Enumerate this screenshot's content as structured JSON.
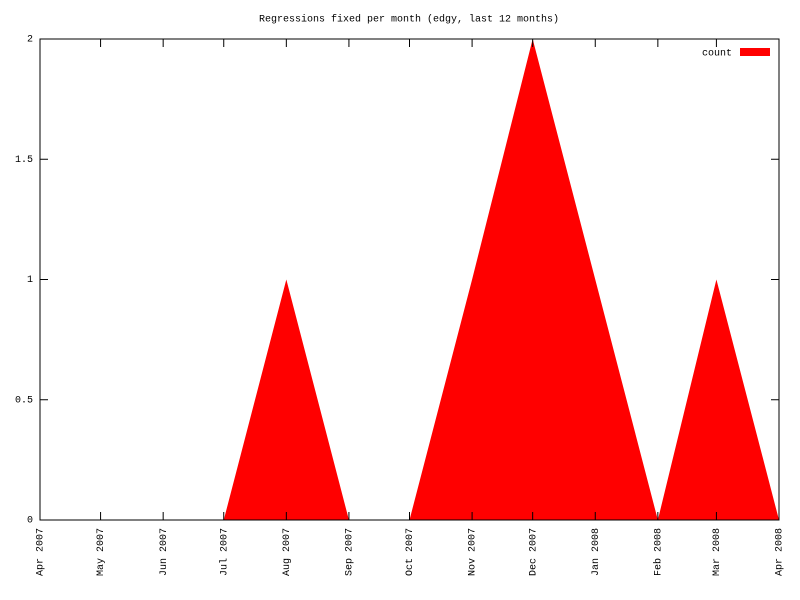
{
  "chart_data": {
    "type": "area",
    "title": "Regressions fixed per month (edgy, last 12 months)",
    "x": [
      "Apr 2007",
      "May 2007",
      "Jun 2007",
      "Jul 2007",
      "Aug 2007",
      "Sep 2007",
      "Oct 2007",
      "Nov 2007",
      "Dec 2007",
      "Jan 2008",
      "Feb 2008",
      "Mar 2008",
      "Apr 2008"
    ],
    "series": [
      {
        "name": "count",
        "color": "#ff0000",
        "values": [
          0,
          0,
          0,
          0,
          1,
          0,
          0,
          1,
          2,
          1,
          0,
          1,
          0
        ]
      }
    ],
    "ylim": [
      0,
      2
    ],
    "yticks": [
      0,
      0.5,
      1,
      1.5,
      2
    ],
    "legend": "top-right",
    "grid": false
  }
}
